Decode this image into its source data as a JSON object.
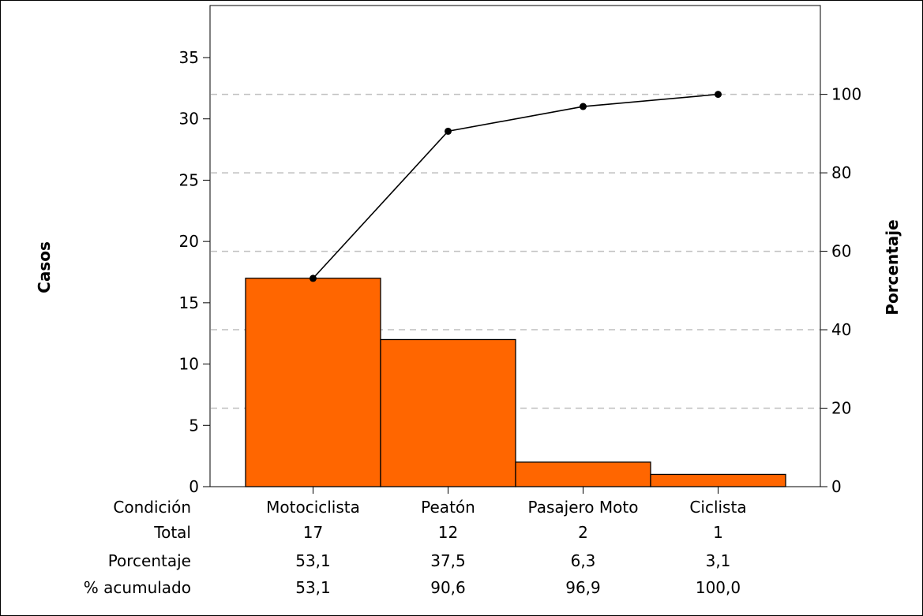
{
  "chart_data": {
    "type": "bar",
    "subtype": "pareto",
    "categories": [
      "Motociclista",
      "Peatón",
      "Pasajero Moto",
      "Ciclista"
    ],
    "values": [
      17,
      12,
      2,
      1
    ],
    "percent": [
      "53,1",
      "37,5",
      "6,3",
      "3,1"
    ],
    "cumulative_percent": [
      53.1,
      90.6,
      96.9,
      100.0
    ],
    "cumulative_percent_labels": [
      "53,1",
      "90,6",
      "96,9",
      "100,0"
    ],
    "totals_labels": [
      "17",
      "12",
      "2",
      "1"
    ],
    "ylabel": "Casos",
    "ylabel_right": "Porcentaje",
    "ylim": [
      0,
      35
    ],
    "yticks": [
      0,
      5,
      10,
      15,
      20,
      25,
      30,
      35
    ],
    "ylim_right": [
      0,
      109.375
    ],
    "yticks_right": [
      0,
      20,
      40,
      60,
      80,
      100
    ],
    "grid": "dashed horizontal at right-axis ticks",
    "legend": "none",
    "table_row_labels": {
      "category": "Condición",
      "total": "Total",
      "percent": "Porcentaje",
      "cumulative": "% acumulado"
    },
    "colors": {
      "bar": "#ff6600",
      "bar_edge": "#000000",
      "line": "#000000",
      "grid": "#bfbfbf"
    }
  }
}
